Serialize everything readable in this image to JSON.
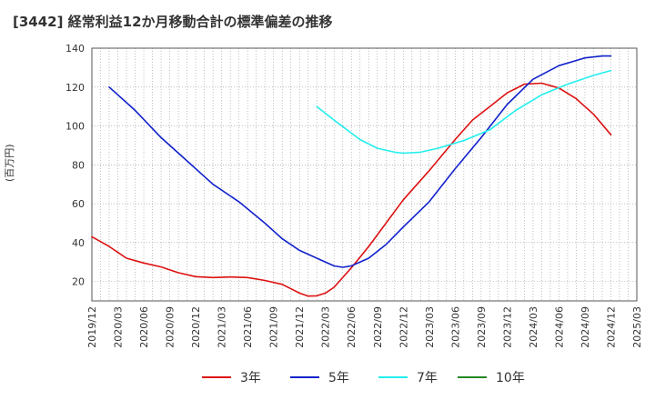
{
  "title": "[3442]  経常利益12か月移動合計の標準偏差の推移",
  "chart_data": {
    "type": "line",
    "title": "[3442]  経常利益12か月移動合計の標準偏差の推移",
    "ylabel": "(百万円)",
    "xlabel": "",
    "ylim": [
      10,
      140
    ],
    "yticks": [
      20,
      40,
      60,
      80,
      100,
      120,
      140
    ],
    "x_ticks": [
      "2019/12",
      "2020/03",
      "2020/06",
      "2020/09",
      "2020/12",
      "2021/03",
      "2021/06",
      "2021/09",
      "2021/12",
      "2022/03",
      "2022/06",
      "2022/09",
      "2022/12",
      "2023/03",
      "2023/06",
      "2023/09",
      "2023/12",
      "2024/03",
      "2024/06",
      "2024/09",
      "2024/12",
      "2025/03"
    ],
    "grid": true,
    "legend_position": "bottom",
    "series": [
      {
        "name": "3年",
        "color": "#dd1111",
        "points": [
          [
            "2019/12",
            43
          ],
          [
            "2020/02",
            38
          ],
          [
            "2020/04",
            32
          ],
          [
            "2020/06",
            29.5
          ],
          [
            "2020/08",
            27.5
          ],
          [
            "2020/10",
            24.5
          ],
          [
            "2020/12",
            22.5
          ],
          [
            "2021/02",
            22
          ],
          [
            "2021/04",
            22.3
          ],
          [
            "2021/06",
            22
          ],
          [
            "2021/08",
            20.5
          ],
          [
            "2021/10",
            18.5
          ],
          [
            "2021/12",
            14
          ],
          [
            "2022/01",
            12.5
          ],
          [
            "2022/02",
            12.6
          ],
          [
            "2022/03",
            14
          ],
          [
            "2022/04",
            17
          ],
          [
            "2022/06",
            27
          ],
          [
            "2022/08",
            38
          ],
          [
            "2022/10",
            50
          ],
          [
            "2022/12",
            62
          ],
          [
            "2023/03",
            77
          ],
          [
            "2023/06",
            93
          ],
          [
            "2023/08",
            103
          ],
          [
            "2023/10",
            110
          ],
          [
            "2023/12",
            117
          ],
          [
            "2024/02",
            121.5
          ],
          [
            "2024/04",
            122
          ],
          [
            "2024/06",
            119.5
          ],
          [
            "2024/08",
            114
          ],
          [
            "2024/10",
            106
          ],
          [
            "2024/12",
            95.5
          ]
        ]
      },
      {
        "name": "5年",
        "color": "#1122cc",
        "points": [
          [
            "2020/02",
            120
          ],
          [
            "2020/05",
            108
          ],
          [
            "2020/08",
            94
          ],
          [
            "2020/11",
            82
          ],
          [
            "2021/02",
            70
          ],
          [
            "2021/05",
            61
          ],
          [
            "2021/08",
            50
          ],
          [
            "2021/10",
            42
          ],
          [
            "2021/12",
            36
          ],
          [
            "2022/02",
            32
          ],
          [
            "2022/04",
            28
          ],
          [
            "2022/05",
            27.3
          ],
          [
            "2022/06",
            28
          ],
          [
            "2022/08",
            32
          ],
          [
            "2022/10",
            39
          ],
          [
            "2022/12",
            48
          ],
          [
            "2023/03",
            61
          ],
          [
            "2023/06",
            78
          ],
          [
            "2023/09",
            94
          ],
          [
            "2023/12",
            111
          ],
          [
            "2024/03",
            124
          ],
          [
            "2024/06",
            131
          ],
          [
            "2024/09",
            135
          ],
          [
            "2024/11",
            136
          ],
          [
            "2024/12",
            136
          ]
        ]
      },
      {
        "name": "7年",
        "color": "#22eeee",
        "points": [
          [
            "2022/02",
            110
          ],
          [
            "2022/04",
            103
          ],
          [
            "2022/07",
            93
          ],
          [
            "2022/09",
            88.5
          ],
          [
            "2022/11",
            86.5
          ],
          [
            "2022/12",
            86
          ],
          [
            "2023/02",
            86.5
          ],
          [
            "2023/04",
            88.5
          ],
          [
            "2023/07",
            92.5
          ],
          [
            "2023/10",
            98
          ],
          [
            "2024/01",
            108
          ],
          [
            "2024/04",
            116
          ],
          [
            "2024/07",
            121.5
          ],
          [
            "2024/10",
            126
          ],
          [
            "2024/12",
            128.5
          ]
        ]
      },
      {
        "name": "10年",
        "color": "#228822",
        "points": []
      }
    ]
  }
}
